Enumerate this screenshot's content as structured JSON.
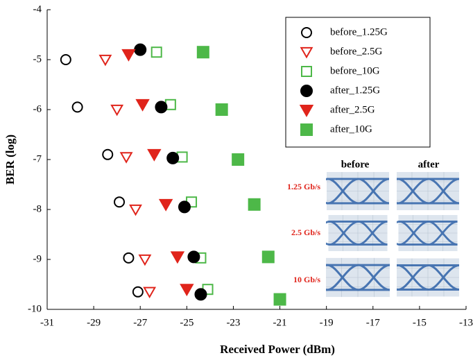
{
  "chart_data": {
    "type": "scatter",
    "x_label": "Received Power (dBm)",
    "y_label": "BER (log)",
    "xlim": [
      -31,
      -13
    ],
    "xticks": [
      -31,
      -29,
      -27,
      -25,
      -23,
      -21,
      -19,
      -17,
      -15,
      -13
    ],
    "ylim": [
      -10,
      -4
    ],
    "yticks": [
      -10,
      -9,
      -8,
      -7,
      -6,
      -5,
      -4
    ],
    "legend": "upper right",
    "series": [
      {
        "name": "before_1.25G",
        "color": "#000000",
        "marker": "circle",
        "filled": false,
        "x": [
          -30.2,
          -29.7,
          -28.4,
          -27.9,
          -27.5,
          -27.1
        ],
        "values": [
          -5.0,
          -5.95,
          -6.9,
          -7.85,
          -8.97,
          -9.65
        ]
      },
      {
        "name": "before_2.5G",
        "color": "#e0241b",
        "marker": "triangle",
        "filled": false,
        "x": [
          -28.5,
          -28.0,
          -27.6,
          -27.2,
          -26.8,
          -26.6
        ],
        "values": [
          -5.0,
          -6.0,
          -6.95,
          -8.0,
          -9.0,
          -9.65
        ]
      },
      {
        "name": "before_10G",
        "color": "#4db848",
        "marker": "square",
        "filled": false,
        "x": [
          -26.3,
          -25.7,
          -25.2,
          -24.8,
          -24.4,
          -24.1
        ],
        "values": [
          -4.85,
          -5.9,
          -6.95,
          -7.85,
          -8.97,
          -9.6
        ]
      },
      {
        "name": "after_1.25G",
        "color": "#000000",
        "marker": "circle",
        "filled": true,
        "x": [
          -27.0,
          -26.1,
          -25.6,
          -25.1,
          -24.7,
          -24.4
        ],
        "values": [
          -4.8,
          -5.95,
          -6.97,
          -7.95,
          -8.95,
          -9.7
        ]
      },
      {
        "name": "after_2.5G",
        "color": "#e0241b",
        "marker": "triangle",
        "filled": true,
        "x": [
          -27.5,
          -26.9,
          -26.4,
          -25.9,
          -25.4,
          -25.0
        ],
        "values": [
          -4.9,
          -5.9,
          -6.9,
          -7.9,
          -8.95,
          -9.6
        ]
      },
      {
        "name": "after_10G",
        "color": "#4db848",
        "marker": "square",
        "filled": true,
        "x": [
          -24.3,
          -23.5,
          -22.8,
          -22.1,
          -21.5,
          -21.0
        ],
        "values": [
          -4.85,
          -6.0,
          -7.0,
          -7.9,
          -8.95,
          -9.8
        ]
      }
    ],
    "inset": {
      "columns": [
        "before",
        "after"
      ],
      "rows": [
        "1.25 Gb/s",
        "2.5 Gb/s",
        "10 Gb/s"
      ]
    }
  }
}
